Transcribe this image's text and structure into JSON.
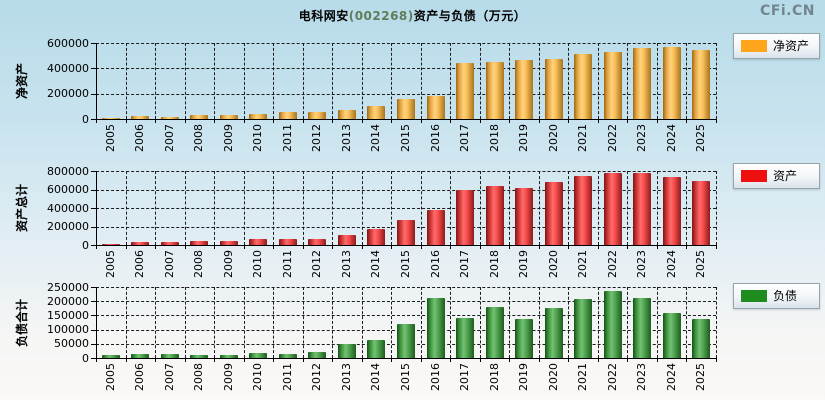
{
  "page": {
    "title": {
      "prefix": "电科网安",
      "code": "(002268)",
      "suffix": "资产与负债（万元）"
    },
    "logo": "CFi.CN",
    "title_color": "#000000",
    "code_color": "#5f7d5a",
    "logo_color": "#72868f",
    "background_top": "#b7dbe9",
    "background_bottom": "#fbf8f7"
  },
  "chart_data": [
    {
      "type": "bar",
      "title": "净资产",
      "ylabel": "净资产",
      "legend": "净资产",
      "xlabel": "",
      "ylim": [
        0,
        600000
      ],
      "yticks": [
        0,
        200000,
        400000,
        600000
      ],
      "grid": "dashed",
      "legend_position": "right",
      "color": "#ffa51b",
      "bar_gradient": [
        [
          "#9c6812",
          0
        ],
        [
          "#e2a140",
          18
        ],
        [
          "#ffd27c",
          42
        ],
        [
          "#fdc35f",
          58
        ],
        [
          "#a8741c",
          100
        ]
      ],
      "categories": [
        "2005",
        "2006",
        "2007",
        "2008",
        "2009",
        "2010",
        "2011",
        "2012",
        "2013",
        "2014",
        "2015",
        "2016",
        "2017",
        "2018",
        "2019",
        "2020",
        "2021",
        "2022",
        "2023",
        "2024",
        "2025"
      ],
      "values": [
        8000,
        20000,
        18000,
        33000,
        34000,
        42000,
        52000,
        55000,
        72000,
        100000,
        157000,
        178000,
        444000,
        450000,
        466000,
        473000,
        512000,
        528000,
        559000,
        570000,
        544000
      ]
    },
    {
      "type": "bar",
      "title": "资产总计",
      "ylabel": "资产总计",
      "legend": "资产",
      "xlabel": "",
      "ylim": [
        0,
        800000
      ],
      "yticks": [
        0,
        200000,
        400000,
        600000,
        800000
      ],
      "grid": "dashed",
      "legend_position": "right",
      "color": "#ee1010",
      "bar_gradient": [
        [
          "#7e1414",
          0
        ],
        [
          "#c63232",
          18
        ],
        [
          "#ff6b6b",
          42
        ],
        [
          "#ff5252",
          58
        ],
        [
          "#8e1a1a",
          100
        ]
      ],
      "categories": [
        "2005",
        "2006",
        "2007",
        "2008",
        "2009",
        "2010",
        "2011",
        "2012",
        "2013",
        "2014",
        "2015",
        "2016",
        "2017",
        "2018",
        "2019",
        "2020",
        "2021",
        "2022",
        "2023",
        "2024",
        "2025"
      ],
      "values": [
        11000,
        33000,
        29000,
        47000,
        47000,
        62000,
        62000,
        65000,
        110000,
        175000,
        270000,
        382000,
        593000,
        640000,
        618000,
        680000,
        742000,
        782000,
        780000,
        738000,
        695000
      ]
    },
    {
      "type": "bar",
      "title": "负债合计",
      "ylabel": "负债合计",
      "legend": "负债",
      "xlabel": "",
      "ylim": [
        0,
        250000
      ],
      "yticks": [
        0,
        50000,
        100000,
        150000,
        200000,
        250000
      ],
      "grid": "dashed",
      "legend_position": "right",
      "color": "#1e8c1e",
      "bar_gradient": [
        [
          "#174f17",
          0
        ],
        [
          "#3a8f3a",
          18
        ],
        [
          "#74c274",
          42
        ],
        [
          "#57ab57",
          58
        ],
        [
          "#1d5c1d",
          100
        ]
      ],
      "categories": [
        "2005",
        "2006",
        "2007",
        "2008",
        "2009",
        "2010",
        "2011",
        "2012",
        "2013",
        "2014",
        "2015",
        "2016",
        "2017",
        "2018",
        "2019",
        "2020",
        "2021",
        "2022",
        "2023",
        "2024",
        "2025"
      ],
      "values": [
        9000,
        14000,
        14000,
        9000,
        9000,
        18000,
        14000,
        20000,
        48000,
        64000,
        118000,
        212000,
        140000,
        178000,
        136000,
        177000,
        208000,
        237000,
        212000,
        158000,
        139000
      ]
    }
  ]
}
